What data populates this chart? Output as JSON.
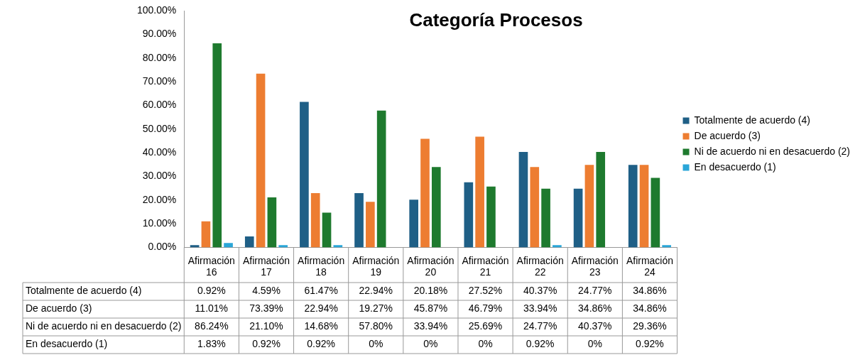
{
  "chart_data": {
    "type": "bar",
    "title": "Categoría Procesos",
    "categories": [
      "Afirmación 16",
      "Afirmación 17",
      "Afirmación 18",
      "Afirmación 19",
      "Afirmación 20",
      "Afirmación 21",
      "Afirmación 22",
      "Afirmación 23",
      "Afirmación 24"
    ],
    "series": [
      {
        "name": "Totalmente de acuerdo (4)",
        "color": "#1f5f86",
        "values": [
          0.92,
          4.59,
          61.47,
          22.94,
          20.18,
          27.52,
          40.37,
          24.77,
          34.86
        ],
        "value_labels": [
          "0.92%",
          "4.59%",
          "61.47%",
          "22.94%",
          "20.18%",
          "27.52%",
          "40.37%",
          "24.77%",
          "34.86%"
        ]
      },
      {
        "name": "De acuerdo (3)",
        "color": "#ed7d31",
        "values": [
          11.01,
          73.39,
          22.94,
          19.27,
          45.87,
          46.79,
          33.94,
          34.86,
          34.86
        ],
        "value_labels": [
          "11.01%",
          "73.39%",
          "22.94%",
          "19.27%",
          "45.87%",
          "46.79%",
          "33.94%",
          "34.86%",
          "34.86%"
        ]
      },
      {
        "name": "Ni de acuerdo ni en desacuerdo (2)",
        "color": "#1e7a2e",
        "values": [
          86.24,
          21.1,
          14.68,
          57.8,
          33.94,
          25.69,
          24.77,
          40.37,
          29.36
        ],
        "value_labels": [
          "86.24%",
          "21.10%",
          "14.68%",
          "57.80%",
          "33.94%",
          "25.69%",
          "24.77%",
          "40.37%",
          "29.36%"
        ]
      },
      {
        "name": "En desacuerdo (1)",
        "color": "#2aa6d8",
        "values": [
          1.83,
          0.92,
          0.92,
          0,
          0,
          0,
          0.92,
          0,
          0.92
        ],
        "value_labels": [
          "1.83%",
          "0.92%",
          "0.92%",
          "0%",
          "0%",
          "0%",
          "0.92%",
          "0%",
          "0.92%"
        ]
      }
    ],
    "ylim": [
      0,
      100
    ],
    "yticks": [
      {
        "value": 0,
        "label": "0.00%"
      },
      {
        "value": 10,
        "label": "10.00%"
      },
      {
        "value": 20,
        "label": "20.00%"
      },
      {
        "value": 30,
        "label": "30.00%"
      },
      {
        "value": 40,
        "label": "40.00%"
      },
      {
        "value": 50,
        "label": "50.00%"
      },
      {
        "value": 60,
        "label": "60.00%"
      },
      {
        "value": 70,
        "label": "70.00%"
      },
      {
        "value": 80,
        "label": "80.00%"
      },
      {
        "value": 90,
        "label": "90.00%"
      },
      {
        "value": 100,
        "label": "100.00%"
      }
    ],
    "grid": false,
    "legend": "right"
  }
}
